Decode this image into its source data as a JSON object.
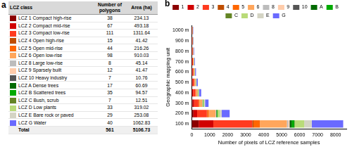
{
  "table": {
    "panel_label": "a",
    "columns": [
      "LCZ class",
      "Number of polygons",
      "Area (ha)"
    ],
    "rows": [
      {
        "color": "#8c0000",
        "class": "LCZ 1 Compact high-rise",
        "polygons": 38,
        "area": 234.13
      },
      {
        "color": "#d10000",
        "class": "LCZ 2 Compact mid-rise",
        "polygons": 67,
        "area": 493.18
      },
      {
        "color": "#ff3b1f",
        "class": "LCZ 3 Compact low-rise",
        "polygons": 111,
        "area": 1311.64
      },
      {
        "color": "#bf4d00",
        "class": "LCZ 4 Open high-rise",
        "polygons": 15,
        "area": 41.42
      },
      {
        "color": "#ff6600",
        "class": "LCZ 5 Open mid-rise",
        "polygons": 44,
        "area": 216.26
      },
      {
        "color": "#ffa65c",
        "class": "LCZ 6 Open low-rise",
        "polygons": 98,
        "area": 910.03
      },
      {
        "color": "#bcbcbc",
        "class": "LCZ 8 Large low-rise",
        "polygons": 8,
        "area": 45.14
      },
      {
        "color": "#ffccaa",
        "class": "LCZ 9 Sparsely built",
        "polygons": 12,
        "area": 41.47
      },
      {
        "color": "#555555",
        "class": "LCZ 10 Heavy industry",
        "polygons": 7,
        "area": 10.76
      },
      {
        "color": "#006a00",
        "class": "LCZ A Dense trees",
        "polygons": 17,
        "area": 60.69
      },
      {
        "color": "#00aa00",
        "class": "LCZ B Scattered trees",
        "polygons": 35,
        "area": 94.57
      },
      {
        "color": "#648525",
        "class": "LCZ C Bush, scrub",
        "polygons": 7,
        "area": 12.51
      },
      {
        "color": "#b9db79",
        "class": "LCZ D Low plants",
        "polygons": 33,
        "area": 319.02
      },
      {
        "color": "#d4d4c4",
        "class": "LCZ E Bare rock or paved",
        "polygons": 29,
        "area": 253.08
      },
      {
        "color": "#6a6aff",
        "class": "LCZ G Water",
        "polygons": 40,
        "area": 1062.83
      }
    ],
    "total": {
      "class": "Total",
      "polygons": 561,
      "area": 5106.73
    }
  },
  "chart_data": {
    "type": "bar",
    "orientation": "horizontal",
    "stacked": true,
    "annotations": [
      "b"
    ],
    "x_label": "Number of pixels of LCZ reference samples",
    "y_label": "Geographic mapping unit",
    "categories": [
      "1000 m",
      "900 m",
      "800 m",
      "700 m",
      "600 m",
      "500 m",
      "400 m",
      "300 m",
      "200 m",
      "100 m"
    ],
    "series": [
      {
        "name": "1",
        "color": "#8c0000",
        "values": [
          4,
          5,
          6,
          8,
          11,
          15,
          24,
          43,
          97,
          386
        ]
      },
      {
        "name": "2",
        "color": "#d10000",
        "values": [
          8,
          10,
          13,
          17,
          23,
          33,
          51,
          90,
          204,
          814
        ]
      },
      {
        "name": "3",
        "color": "#ff3b1f",
        "values": [
          22,
          27,
          34,
          44,
          60,
          87,
          135,
          240,
          541,
          2164
        ]
      },
      {
        "name": "4",
        "color": "#bf4d00",
        "values": [
          1,
          1,
          1,
          1,
          2,
          3,
          4,
          8,
          17,
          68
        ]
      },
      {
        "name": "5",
        "color": "#ff6600",
        "values": [
          4,
          4,
          6,
          7,
          10,
          14,
          22,
          40,
          89,
          357
        ]
      },
      {
        "name": "6",
        "color": "#ffa65c",
        "values": [
          15,
          19,
          23,
          31,
          42,
          60,
          94,
          167,
          376,
          1502
        ]
      },
      {
        "name": "8",
        "color": "#bcbcbc",
        "values": [
          1,
          1,
          1,
          2,
          2,
          3,
          5,
          8,
          19,
          74
        ]
      },
      {
        "name": "9",
        "color": "#ffccaa",
        "values": [
          1,
          1,
          1,
          1,
          2,
          3,
          4,
          8,
          17,
          68
        ]
      },
      {
        "name": "10",
        "color": "#555555",
        "values": [
          0,
          0,
          0,
          0,
          0,
          1,
          1,
          2,
          5,
          18
        ]
      },
      {
        "name": "A",
        "color": "#006a00",
        "values": [
          1,
          1,
          2,
          2,
          3,
          4,
          6,
          11,
          25,
          100
        ]
      },
      {
        "name": "B",
        "color": "#00aa00",
        "values": [
          2,
          2,
          2,
          3,
          4,
          6,
          10,
          17,
          39,
          156
        ]
      },
      {
        "name": "C",
        "color": "#648525",
        "values": [
          0,
          0,
          0,
          0,
          1,
          1,
          1,
          2,
          5,
          21
        ]
      },
      {
        "name": "D",
        "color": "#b9db79",
        "values": [
          5,
          6,
          8,
          11,
          15,
          21,
          33,
          58,
          132,
          526
        ]
      },
      {
        "name": "E",
        "color": "#d4d4c4",
        "values": [
          4,
          5,
          7,
          9,
          12,
          17,
          26,
          46,
          105,
          418
        ]
      },
      {
        "name": "G",
        "color": "#6a6aff",
        "values": [
          18,
          22,
          27,
          36,
          49,
          70,
          110,
          195,
          438,
          1752
        ]
      }
    ],
    "xlim": [
      0,
      8600
    ],
    "xticks": [
      0,
      1000,
      2000,
      3000,
      4000,
      5000,
      6000,
      7000,
      8000
    ],
    "grid": false,
    "legend": "top"
  }
}
